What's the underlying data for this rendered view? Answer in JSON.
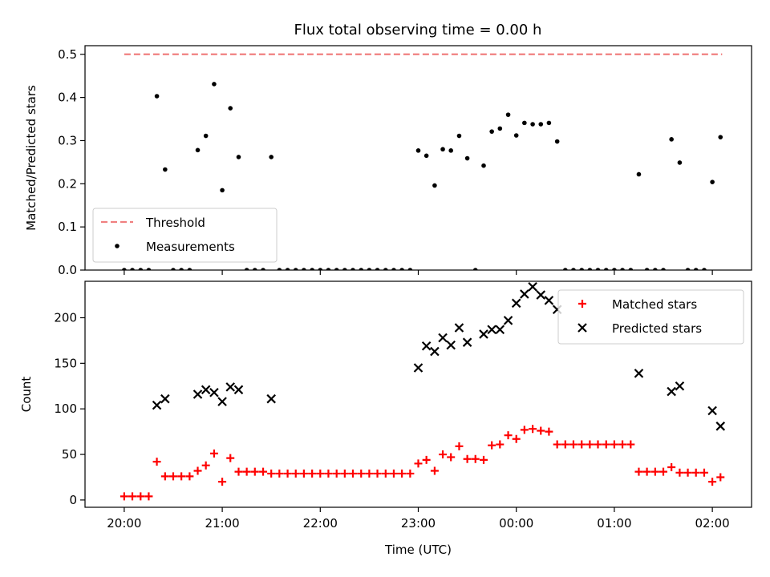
{
  "title": "Flux total observing time = 0.00 h",
  "chart_data": [
    {
      "type": "scatter",
      "ylabel": "Matched/Predicted stars",
      "ylim": [
        0,
        0.52
      ],
      "yticks": [
        0.0,
        0.1,
        0.2,
        0.3,
        0.4,
        0.5
      ],
      "ytick_labels": [
        "0.0",
        "0.1",
        "0.2",
        "0.3",
        "0.4",
        "0.5"
      ],
      "xlim": [
        19.6,
        26.4
      ],
      "legend": {
        "placement": "lower-left",
        "entries": [
          "Threshold",
          "Measurements"
        ]
      },
      "threshold": {
        "name": "Threshold",
        "value": 0.5,
        "x_range": [
          20.0,
          26.1
        ],
        "color": "#f08080"
      },
      "series": [
        {
          "name": "Measurements",
          "color": "#000000",
          "x": [
            20.0,
            20.083,
            20.167,
            20.25,
            20.333,
            20.417,
            20.5,
            20.583,
            20.667,
            20.75,
            20.833,
            20.917,
            21.0,
            21.083,
            21.167,
            21.25,
            21.333,
            21.417,
            21.5,
            21.583,
            21.667,
            21.75,
            21.833,
            21.917,
            22.0,
            22.083,
            22.167,
            22.25,
            22.333,
            22.417,
            22.5,
            22.583,
            22.667,
            22.75,
            22.833,
            22.917,
            23.0,
            23.083,
            23.167,
            23.25,
            23.333,
            23.417,
            23.5,
            23.583,
            23.667,
            23.75,
            23.833,
            23.917,
            24.0,
            24.083,
            24.167,
            24.25,
            24.333,
            24.417,
            24.5,
            24.583,
            24.667,
            24.75,
            24.833,
            24.917,
            25.0,
            25.083,
            25.167,
            25.25,
            25.333,
            25.417,
            25.5,
            25.583,
            25.667,
            25.75,
            25.833,
            25.917,
            26.0,
            26.083
          ],
          "y": [
            0,
            0,
            0,
            0,
            0.403,
            0.233,
            0,
            0,
            0,
            0.278,
            0.311,
            0.431,
            0.185,
            0.375,
            0.262,
            0,
            0,
            0,
            0.262,
            0,
            0,
            0,
            0,
            0,
            0,
            0,
            0,
            0,
            0,
            0,
            0,
            0,
            0,
            0,
            0,
            0,
            0.277,
            0.265,
            0.196,
            0.28,
            0.277,
            0.311,
            0.259,
            0,
            0.242,
            0.321,
            0.328,
            0.36,
            0.312,
            0.341,
            0.338,
            0.338,
            0.341,
            0.298,
            0,
            0,
            0,
            0,
            0,
            0,
            0,
            0,
            0,
            0.222,
            0,
            0,
            0,
            0.303,
            0.249,
            0,
            0,
            0,
            0.204,
            0.308
          ]
        }
      ]
    },
    {
      "type": "scatter",
      "ylabel": "Count",
      "xlabel": "Time (UTC)",
      "ylim": [
        -8,
        240
      ],
      "yticks": [
        0,
        50,
        100,
        150,
        200
      ],
      "ytick_labels": [
        "0",
        "50",
        "100",
        "150",
        "200"
      ],
      "xlim": [
        19.6,
        26.4
      ],
      "xticks": [
        20,
        21,
        22,
        23,
        24,
        25,
        26
      ],
      "xtick_labels": [
        "20:00",
        "21:00",
        "22:00",
        "23:00",
        "00:00",
        "01:00",
        "02:00"
      ],
      "legend": {
        "placement": "top-right",
        "entries": [
          "Matched stars",
          "Predicted stars"
        ]
      },
      "series": [
        {
          "name": "Matched stars",
          "marker": "plus",
          "color": "#ff0000",
          "x": [
            20.0,
            20.083,
            20.167,
            20.25,
            20.333,
            20.417,
            20.5,
            20.583,
            20.667,
            20.75,
            20.833,
            20.917,
            21.0,
            21.083,
            21.167,
            21.25,
            21.333,
            21.417,
            21.5,
            21.583,
            21.667,
            21.75,
            21.833,
            21.917,
            22.0,
            22.083,
            22.167,
            22.25,
            22.333,
            22.417,
            22.5,
            22.583,
            22.667,
            22.75,
            22.833,
            22.917,
            23.0,
            23.083,
            23.167,
            23.25,
            23.333,
            23.417,
            23.5,
            23.583,
            23.667,
            23.75,
            23.833,
            23.917,
            24.0,
            24.083,
            24.167,
            24.25,
            24.333,
            24.417,
            24.5,
            24.583,
            24.667,
            24.75,
            24.833,
            24.917,
            25.0,
            25.083,
            25.167,
            25.25,
            25.333,
            25.417,
            25.5,
            25.583,
            25.667,
            25.75,
            25.833,
            25.917,
            26.0,
            26.083
          ],
          "y": [
            4,
            4,
            4,
            4,
            42,
            26,
            26,
            26,
            26,
            32,
            38,
            51,
            20,
            46,
            31,
            31,
            31,
            31,
            29,
            29,
            29,
            29,
            29,
            29,
            29,
            29,
            29,
            29,
            29,
            29,
            29,
            29,
            29,
            29,
            29,
            29,
            40,
            44,
            32,
            50,
            47,
            59,
            45,
            45,
            44,
            60,
            61,
            71,
            67,
            77,
            78,
            76,
            75,
            61,
            61,
            61,
            61,
            61,
            61,
            61,
            61,
            61,
            61,
            31,
            31,
            31,
            31,
            36,
            30,
            30,
            30,
            30,
            20,
            25
          ]
        },
        {
          "name": "Predicted stars",
          "marker": "x",
          "color": "#000000",
          "x": [
            20.333,
            20.417,
            20.75,
            20.833,
            20.917,
            21.0,
            21.083,
            21.167,
            21.5,
            23.0,
            23.083,
            23.167,
            23.25,
            23.333,
            23.417,
            23.5,
            23.667,
            23.75,
            23.833,
            23.917,
            24.0,
            24.083,
            24.167,
            24.25,
            24.333,
            24.417,
            25.25,
            25.583,
            25.667,
            26.0,
            26.083
          ],
          "y": [
            104,
            111,
            116,
            121,
            118,
            108,
            124,
            121,
            111,
            145,
            169,
            163,
            178,
            170,
            189,
            173,
            182,
            187,
            187,
            197,
            216,
            226,
            234,
            225,
            219,
            209,
            139,
            119,
            125,
            98,
            81
          ]
        }
      ]
    }
  ]
}
